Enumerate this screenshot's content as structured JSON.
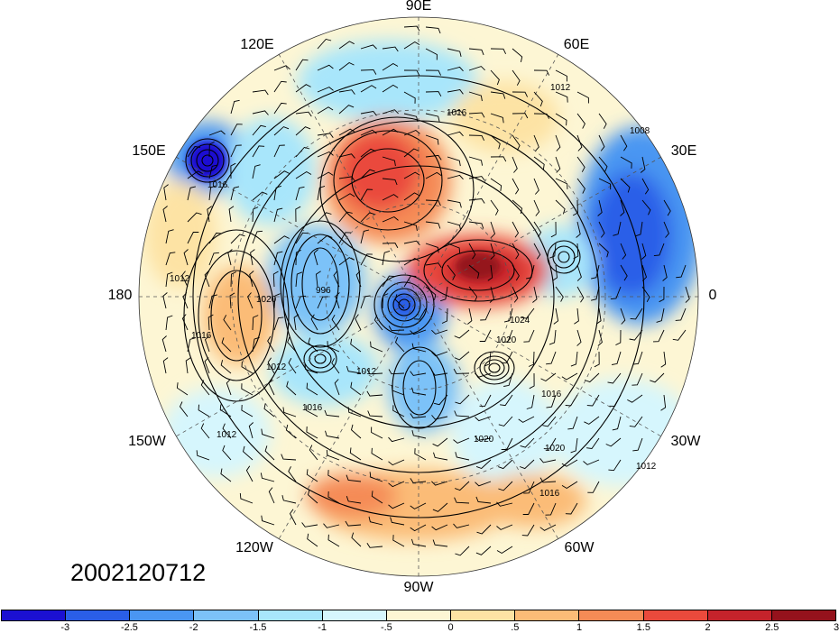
{
  "longitude_labels": [
    "90E",
    "60E",
    "30E",
    "0",
    "30W",
    "60W",
    "90W",
    "120W",
    "150W",
    "180",
    "150E",
    "120E"
  ],
  "date_stamp": "2002120712",
  "contour_labels": [
    "1012",
    "1016",
    "1008",
    "1016",
    "1012",
    "1016",
    "1020",
    "1012",
    "1016",
    "1020",
    "1016",
    "1012",
    "996",
    "1012",
    "1024",
    "1020",
    "1020",
    "1016",
    "1012"
  ],
  "colorbar": {
    "colors": [
      "#1b10d2",
      "#2a5ee8",
      "#4a96f2",
      "#7cc2f8",
      "#a8e6fb",
      "#d6f6fd",
      "#fdf6d4",
      "#fde3a4",
      "#fbbc77",
      "#f58b56",
      "#ea4a3c",
      "#c5232b",
      "#95121c"
    ],
    "ticks": [
      "-3",
      "-2.5",
      "-2",
      "-1.5",
      "-1",
      "-.5",
      "0",
      ".5",
      "1",
      "1.5",
      "2",
      "2.5",
      "3"
    ]
  },
  "legend_colors": {
    "cold": "#1b10d2",
    "neutral": "#fdf6d4",
    "warm": "#95121c"
  }
}
